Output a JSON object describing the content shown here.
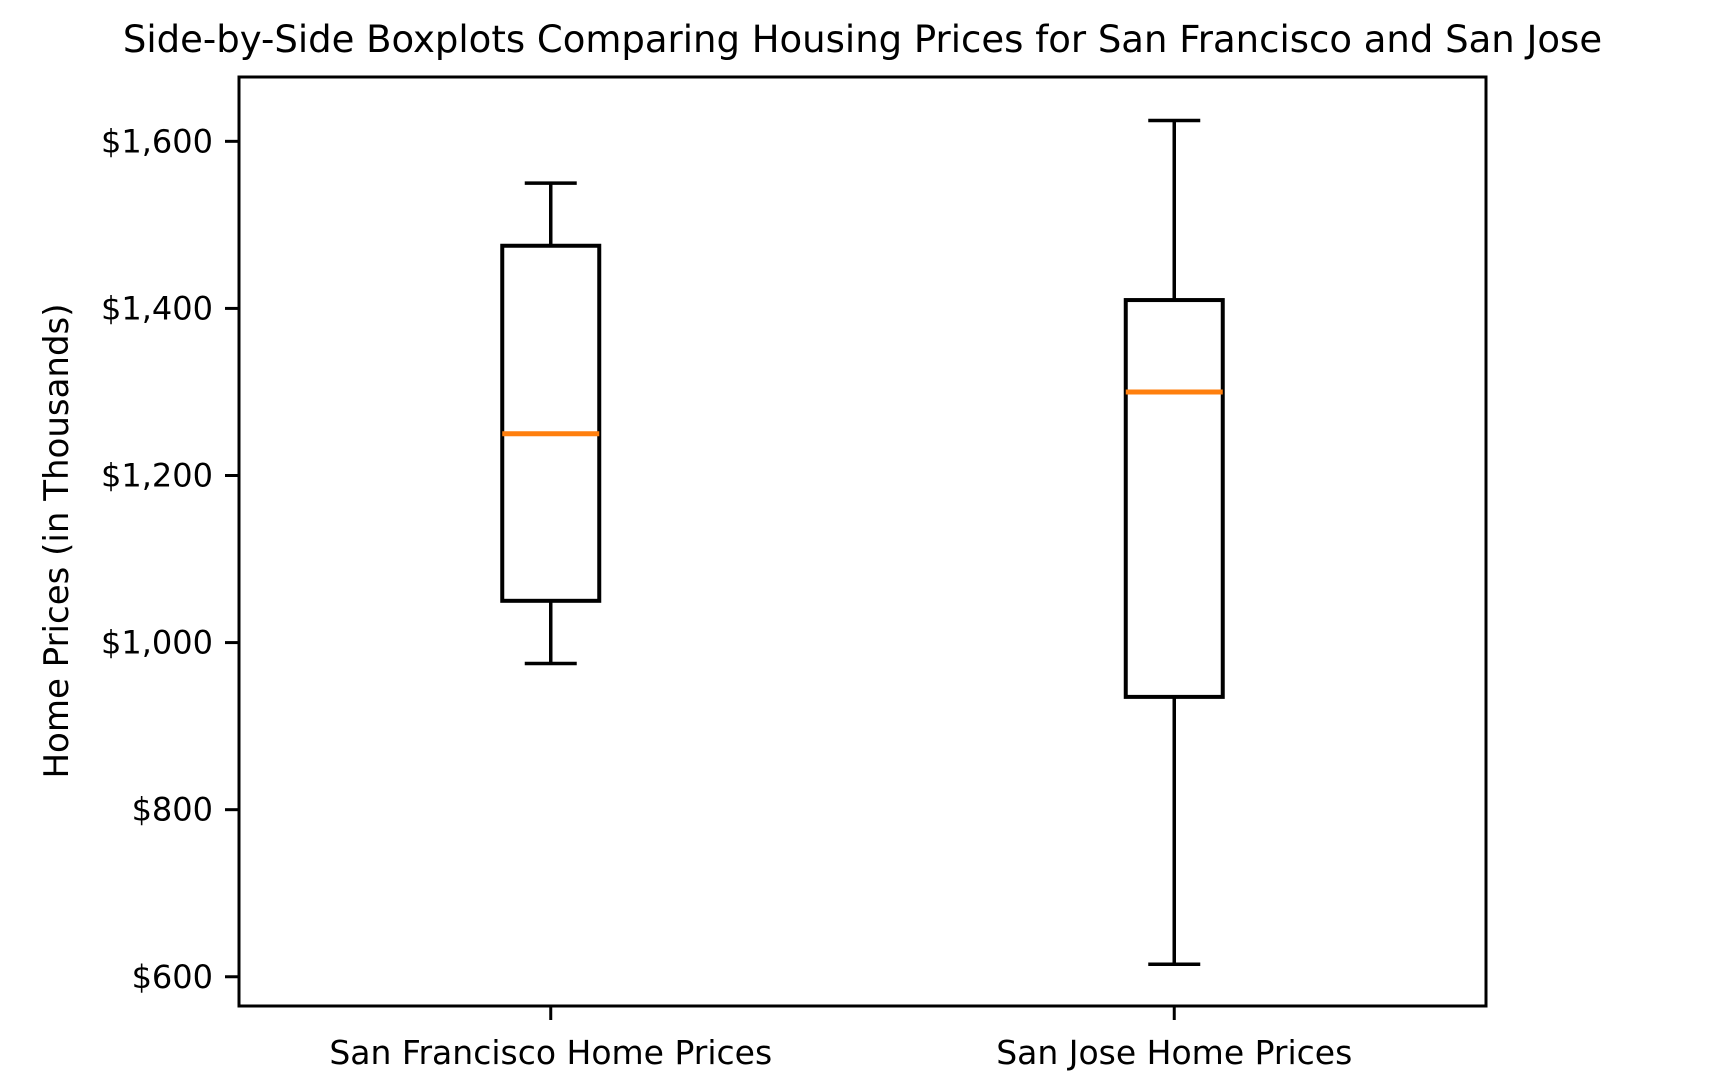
{
  "page": {
    "background_color": "#ffffff",
    "text_color": "#000000"
  },
  "chart_data": {
    "type": "boxplot",
    "title": "Side-by-Side Boxplots Comparing Housing Prices for San Francisco and San Jose",
    "xlabel": "",
    "ylabel": "Home Prices (in Thousands)",
    "categories": [
      "San Francisco Home Prices",
      "San Jose Home Prices"
    ],
    "series": [
      {
        "name": "San Francisco Home Prices",
        "min": 975,
        "q1": 1050,
        "median": 1250,
        "q3": 1475,
        "max": 1550
      },
      {
        "name": "San Jose Home Prices",
        "min": 615,
        "q1": 935,
        "median": 1300,
        "q3": 1410,
        "max": 1625
      }
    ],
    "ylim": [
      565,
      1677
    ],
    "yticks": [
      600,
      800,
      1000,
      1200,
      1400,
      1600
    ],
    "ytick_labels": [
      "$600",
      "$800",
      "$1,000",
      "$1,200",
      "$1,400",
      "$1,600"
    ],
    "grid": false,
    "legend": "none",
    "median_color": "#ff7f0e",
    "box_color": "#000000"
  }
}
